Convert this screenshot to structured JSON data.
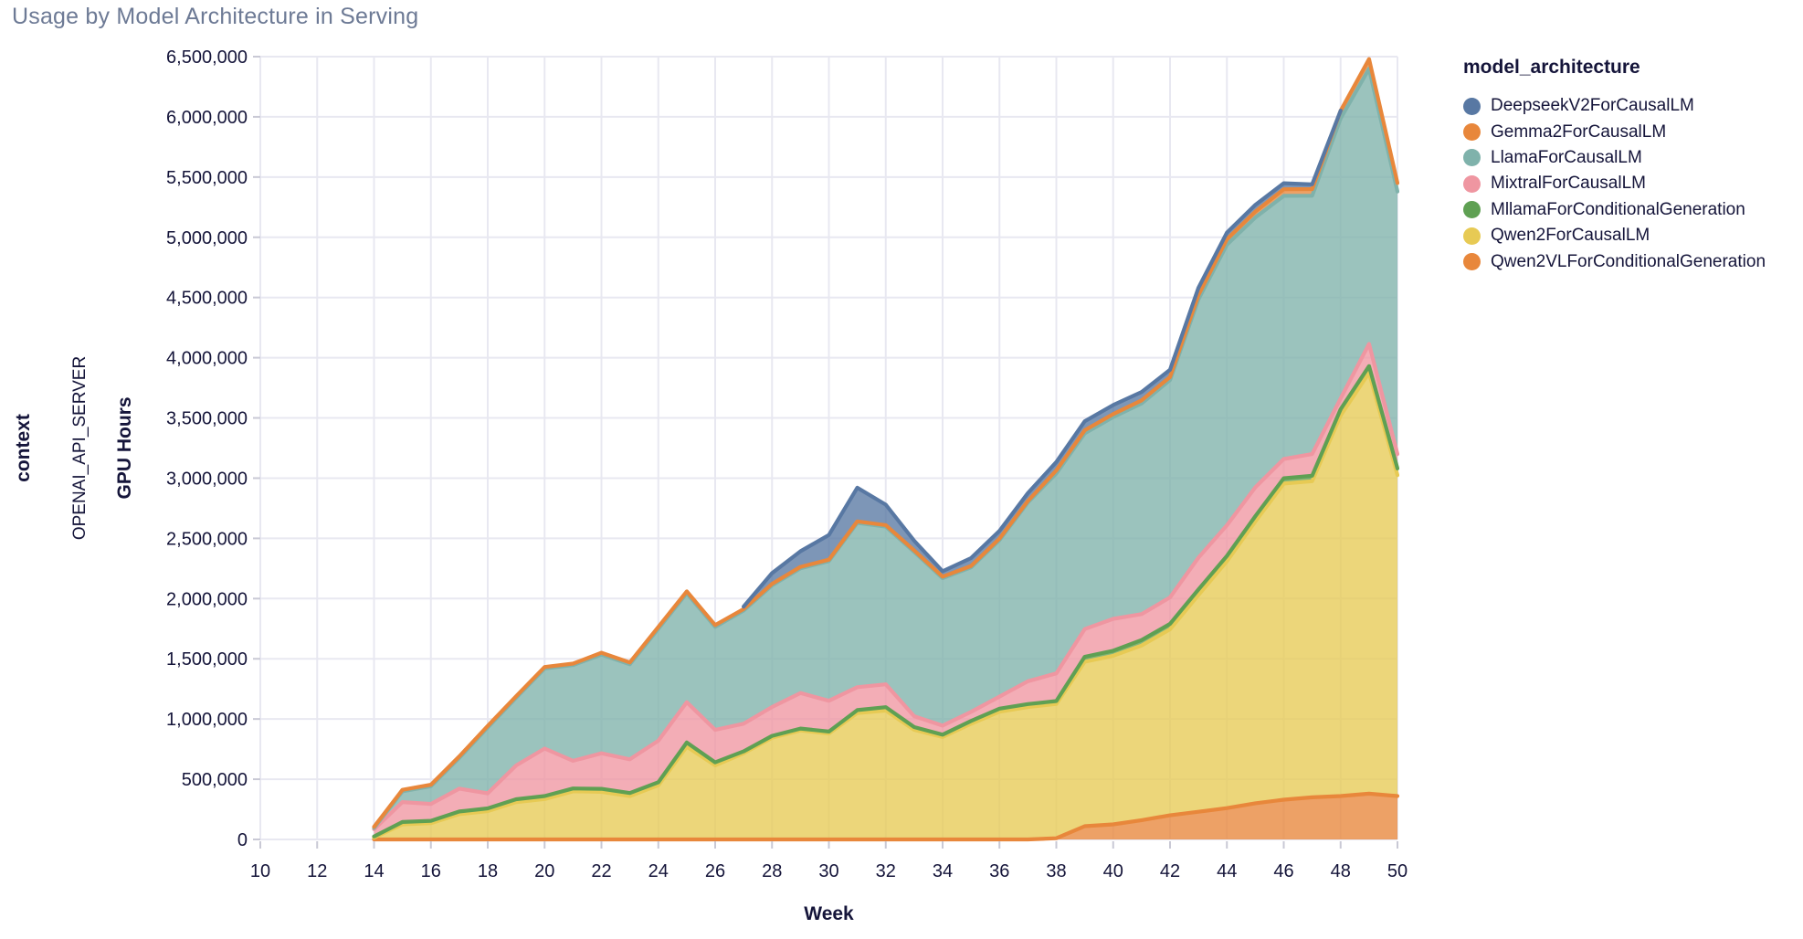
{
  "title": "Usage by Model Architecture in Serving",
  "row_labels": {
    "facet": "context",
    "facet_value": "OPENAI_API_SERVER"
  },
  "legend": {
    "title": "model_architecture",
    "items": [
      {
        "label": "DeepseekV2ForCausalLM",
        "color": "#5878a3"
      },
      {
        "label": "Gemma2ForCausalLM",
        "color": "#e8873b"
      },
      {
        "label": "LlamaForCausalLM",
        "color": "#7fb2ab"
      },
      {
        "label": "MixtralForCausalLM",
        "color": "#ef96a1"
      },
      {
        "label": "MllamaForConditionalGeneration",
        "color": "#5fa053"
      },
      {
        "label": "Qwen2ForCausalLM",
        "color": "#e7ca54"
      },
      {
        "label": "Qwen2VLForConditionalGeneration",
        "color": "#e8873b"
      }
    ]
  },
  "chart_data": {
    "type": "area",
    "stacked": true,
    "title": "Usage by Model Architecture in Serving",
    "xlabel": "Week",
    "ylabel": "GPU Hours",
    "x_domain": [
      10,
      50
    ],
    "y_domain": [
      0,
      6500000
    ],
    "x_tick_labels": [
      "10",
      "12",
      "14",
      "16",
      "18",
      "20",
      "22",
      "24",
      "26",
      "28",
      "30",
      "32",
      "34",
      "36",
      "38",
      "40",
      "42",
      "44",
      "46",
      "48",
      "50"
    ],
    "x_tick_values": [
      10,
      12,
      14,
      16,
      18,
      20,
      22,
      24,
      26,
      28,
      30,
      32,
      34,
      36,
      38,
      40,
      42,
      44,
      46,
      48,
      50
    ],
    "y_tick_labels": [
      "0",
      "500,000",
      "1,000,000",
      "1,500,000",
      "2,000,000",
      "2,500,000",
      "3,000,000",
      "3,500,000",
      "4,000,000",
      "4,500,000",
      "5,000,000",
      "5,500,000",
      "6,000,000",
      "6,500,000"
    ],
    "y_tick_values": [
      0,
      500000,
      1000000,
      1500000,
      2000000,
      2500000,
      3000000,
      3500000,
      4000000,
      4500000,
      5000000,
      5500000,
      6000000,
      6500000
    ],
    "grid": true,
    "legend_position": "right",
    "stack_order_bottom_to_top": [
      "Qwen2VLForConditionalGeneration",
      "Qwen2ForCausalLM",
      "MllamaForConditionalGeneration",
      "MixtralForCausalLM",
      "LlamaForCausalLM",
      "Gemma2ForCausalLM",
      "DeepseekV2ForCausalLM"
    ],
    "x": [
      14,
      15,
      16,
      17,
      18,
      19,
      20,
      21,
      22,
      23,
      24,
      25,
      26,
      27,
      28,
      29,
      30,
      31,
      32,
      33,
      34,
      35,
      36,
      37,
      38,
      39,
      40,
      41,
      42,
      43,
      44,
      45,
      46,
      47,
      48,
      49,
      50
    ],
    "series": [
      {
        "name": "DeepseekV2ForCausalLM",
        "color": "#5878a3",
        "values": [
          null,
          null,
          null,
          null,
          null,
          null,
          null,
          null,
          null,
          null,
          null,
          null,
          null,
          20000,
          90000,
          130000,
          205000,
          280000,
          170000,
          80000,
          45000,
          65000,
          65000,
          65000,
          70000,
          75000,
          75000,
          70000,
          60000,
          60000,
          55000,
          55000,
          50000,
          40000,
          0,
          null,
          null
        ]
      },
      {
        "name": "Gemma2ForCausalLM",
        "color": "#e8873b",
        "values": [
          10000,
          12000,
          12000,
          12000,
          12000,
          12000,
          12000,
          12000,
          15000,
          15000,
          15000,
          15000,
          15000,
          12000,
          12000,
          12000,
          12000,
          12000,
          12000,
          12000,
          12000,
          12000,
          12000,
          12000,
          25000,
          25000,
          25000,
          25000,
          25000,
          35000,
          45000,
          50000,
          55000,
          55000,
          65000,
          80000,
          70000
        ]
      },
      {
        "name": "LlamaForCausalLM",
        "color": "#7fb2ab",
        "values": [
          10000,
          90000,
          147000,
          256000,
          548000,
          563000,
          665000,
          795000,
          820000,
          790000,
          930000,
          905000,
          855000,
          940000,
          1010000,
          1035000,
          1160000,
          1365000,
          1310000,
          1365000,
          1225000,
          1200000,
          1300000,
          1485000,
          1660000,
          1625000,
          1675000,
          1750000,
          1805000,
          2145000,
          2330000,
          2240000,
          2185000,
          2145000,
          2325000,
          2285000,
          2180000
        ]
      },
      {
        "name": "MixtralForCausalLM",
        "color": "#ef96a1",
        "values": [
          60000,
          165000,
          140000,
          190000,
          125000,
          280000,
          395000,
          230000,
          295000,
          280000,
          345000,
          335000,
          270000,
          230000,
          240000,
          295000,
          255000,
          190000,
          190000,
          90000,
          75000,
          75000,
          100000,
          190000,
          230000,
          230000,
          265000,
          215000,
          220000,
          265000,
          255000,
          240000,
          160000,
          180000,
          90000,
          185000,
          120000
        ]
      },
      {
        "name": "MllamaForConditionalGeneration",
        "color": "#5fa053",
        "values": [
          10000,
          20000,
          20000,
          22000,
          23000,
          24000,
          25000,
          23000,
          25000,
          25000,
          25000,
          35000,
          25000,
          16000,
          15000,
          16000,
          16000,
          24000,
          28000,
          23000,
          20000,
          24000,
          26000,
          24000,
          24000,
          42000,
          42000,
          46000,
          45000,
          45000,
          44000,
          44000,
          44000,
          45000,
          52000,
          55000,
          55000
        ]
      },
      {
        "name": "Qwen2ForCausalLM",
        "color": "#e7ca54",
        "values": [
          15000,
          125000,
          135000,
          210000,
          235000,
          310000,
          335000,
          400000,
          395000,
          360000,
          450000,
          770000,
          615000,
          715000,
          845000,
          905000,
          880000,
          1050000,
          1070000,
          910000,
          850000,
          960000,
          1060000,
          1100000,
          1115000,
          1365000,
          1400000,
          1450000,
          1545000,
          1800000,
          2050000,
          2340000,
          2625000,
          2625000,
          3160000,
          3495000,
          2665000
        ]
      },
      {
        "name": "Qwen2VLForConditionalGeneration",
        "color": "#e8873b",
        "values": [
          0,
          0,
          0,
          0,
          0,
          0,
          0,
          0,
          0,
          0,
          0,
          0,
          0,
          0,
          0,
          0,
          0,
          0,
          0,
          0,
          0,
          0,
          0,
          0,
          10000,
          110000,
          125000,
          160000,
          200000,
          230000,
          260000,
          300000,
          330000,
          350000,
          360000,
          380000,
          360000
        ]
      }
    ]
  },
  "style": {
    "grid_color": "#e8e8f1",
    "tick_color": "#c9c9d5",
    "text_color": "#15153a",
    "title_color": "#6d7a95",
    "fill_opacity": 0.78
  }
}
